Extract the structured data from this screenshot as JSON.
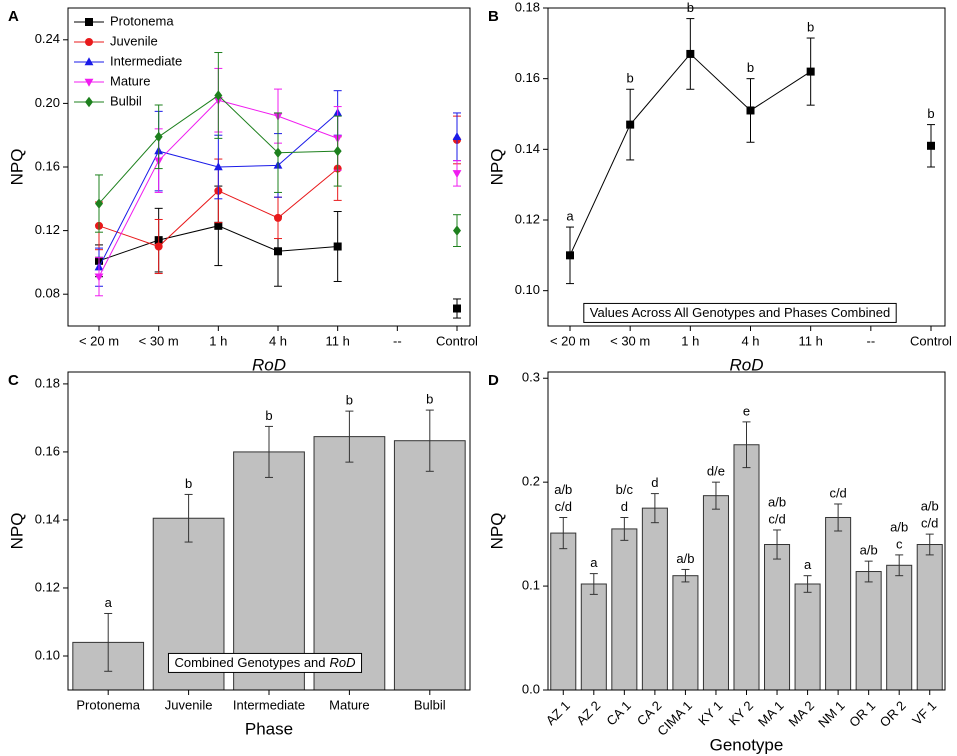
{
  "chart_data": [
    {
      "type": "line",
      "panel": "A",
      "xlabel": "RoD",
      "ylabel": "NPQ",
      "categories": [
        "< 20 m",
        "< 30 m",
        "1 h",
        "4 h",
        "11 h",
        "--",
        "Control"
      ],
      "ylim": [
        0.06,
        0.26
      ],
      "yticks": [
        0.08,
        0.12,
        0.16,
        {
          "value": 0.2,
          "label": "0.20"
        },
        0.24
      ],
      "legend": "upper left",
      "series": [
        {
          "name": "Protonema",
          "color": "#000000",
          "marker": "square",
          "values": [
            0.101,
            0.114,
            0.123,
            0.107,
            0.11,
            null,
            0.071
          ],
          "errors": [
            0.01,
            0.02,
            0.025,
            0.022,
            0.022,
            null,
            0.006
          ]
        },
        {
          "name": "Juvenile",
          "color": "#e8191b",
          "marker": "circle",
          "values": [
            0.123,
            0.11,
            0.145,
            0.128,
            0.159,
            null,
            0.177
          ],
          "errors": [
            0.015,
            0.017,
            0.02,
            0.013,
            0.02,
            null,
            0.015
          ]
        },
        {
          "name": "Intermediate",
          "color": "#1a1ae8",
          "marker": "triangle-up",
          "values": [
            0.097,
            0.17,
            0.16,
            0.161,
            0.194,
            null,
            0.179
          ],
          "errors": [
            0.012,
            0.025,
            0.02,
            0.02,
            0.014,
            null,
            0.015
          ]
        },
        {
          "name": "Mature",
          "color": "#f01cf0",
          "marker": "triangle-down",
          "values": [
            0.091,
            0.164,
            0.202,
            0.192,
            0.178,
            null,
            0.156
          ],
          "errors": [
            0.012,
            0.02,
            0.02,
            0.017,
            0.02,
            null,
            0.008
          ]
        },
        {
          "name": "Bulbil",
          "color": "#1d801d",
          "marker": "diamond",
          "values": [
            0.137,
            0.179,
            0.205,
            0.169,
            0.17,
            null,
            0.12
          ],
          "errors": [
            0.018,
            0.02,
            0.027,
            0.025,
            0.022,
            null,
            0.01
          ]
        }
      ]
    },
    {
      "type": "line",
      "panel": "B",
      "xlabel": "RoD",
      "ylabel": "NPQ",
      "categories": [
        "< 20 m",
        "< 30 m",
        "1 h",
        "4 h",
        "11 h",
        "--",
        "Control"
      ],
      "ylim": [
        0.09,
        0.18
      ],
      "yticks": [
        {
          "value": 0.1,
          "label": "0.10"
        },
        0.12,
        0.14,
        0.16,
        0.18
      ],
      "annotation": [
        "Values Across All Genotypes and Phases Combined"
      ],
      "series": [
        {
          "color": "#000000",
          "marker": "square",
          "values": [
            0.11,
            0.147,
            0.167,
            0.151,
            0.162,
            null,
            0.141
          ],
          "errors": [
            0.008,
            0.01,
            0.01,
            0.009,
            0.0095,
            null,
            0.006
          ],
          "letters": [
            [
              "a"
            ],
            [
              "b"
            ],
            [
              "b"
            ],
            [
              "b"
            ],
            [
              "b"
            ],
            null,
            [
              "b"
            ]
          ]
        }
      ]
    },
    {
      "type": "bar",
      "panel": "C",
      "xlabel": "Phase",
      "ylabel": "NPQ",
      "categories": [
        "Protonema",
        "Juvenile",
        "Intermediate",
        "Mature",
        "Bulbil"
      ],
      "ylim": [
        0.09,
        0.1835
      ],
      "yticks": [
        {
          "value": 0.1,
          "label": "0.10"
        },
        0.12,
        0.14,
        0.16,
        0.18
      ],
      "annotation": [
        "Combined Genotypes and",
        "RoD"
      ],
      "color": "#c0c0c0",
      "values": [
        0.104,
        0.1405,
        0.16,
        0.1645,
        0.1633
      ],
      "errors": [
        0.0085,
        0.007,
        0.0075,
        0.0075,
        0.009
      ],
      "letters": [
        [
          "a"
        ],
        [
          "b"
        ],
        [
          "b"
        ],
        [
          "b"
        ],
        [
          "b"
        ]
      ]
    },
    {
      "type": "bar",
      "panel": "D",
      "xlabel": "Genotype",
      "ylabel": "NPQ",
      "categories": [
        "AZ 1",
        "AZ 2",
        "CA 1",
        "CA 2",
        "CIMA 1",
        "KY 1",
        "KY 2",
        "MA 1",
        "MA 2",
        "NM 1",
        "OR 1",
        "OR 2",
        "VF 1"
      ],
      "ylim": [
        0,
        0.306
      ],
      "yticks": [
        {
          "value": 0,
          "label": "0.0"
        },
        0.1,
        0.2,
        0.3
      ],
      "color": "#c0c0c0",
      "values": [
        0.151,
        0.102,
        0.155,
        0.175,
        0.11,
        0.187,
        0.236,
        0.14,
        0.102,
        0.166,
        0.114,
        0.12,
        0.14
      ],
      "errors": [
        0.015,
        0.01,
        0.011,
        0.014,
        0.006,
        0.013,
        0.022,
        0.014,
        0.008,
        0.013,
        0.01,
        0.01,
        0.01
      ],
      "letters": [
        [
          "a/b",
          "c/d"
        ],
        [
          "a"
        ],
        [
          "b/c",
          "d"
        ],
        [
          "d"
        ],
        [
          "a/b"
        ],
        [
          "d/e"
        ],
        [
          "e"
        ],
        [
          "a/b",
          "c/d"
        ],
        [
          "a"
        ],
        [
          "c/d"
        ],
        [
          "a/b"
        ],
        [
          "a/b",
          "c"
        ],
        [
          "a/b",
          "c/d"
        ]
      ]
    }
  ]
}
